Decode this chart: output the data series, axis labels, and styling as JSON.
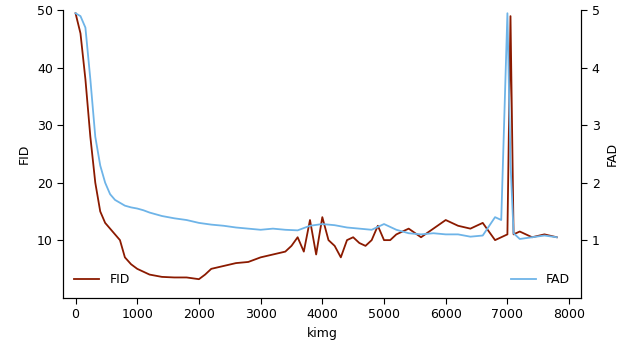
{
  "title": "",
  "xlabel": "kimg",
  "ylabel_left": "FID",
  "ylabel_right": "FAD",
  "fid_color": "#8B1A00",
  "fad_color": "#6EB4E8",
  "fid_label": "FID",
  "fad_label": "FAD",
  "xlim": [
    -200,
    8200
  ],
  "ylim_left": [
    0,
    50
  ],
  "ylim_right": [
    0,
    5
  ],
  "xticks": [
    0,
    1000,
    2000,
    3000,
    4000,
    5000,
    6000,
    7000,
    8000
  ],
  "yticks_left": [
    10,
    20,
    30,
    40,
    50
  ],
  "yticks_right": [
    1,
    2,
    3,
    4,
    5
  ],
  "fid_x": [
    0,
    80,
    160,
    240,
    320,
    400,
    480,
    560,
    640,
    720,
    800,
    900,
    1000,
    1100,
    1200,
    1400,
    1600,
    1800,
    2000,
    2100,
    2200,
    2400,
    2600,
    2800,
    3000,
    3200,
    3400,
    3500,
    3600,
    3700,
    3800,
    3900,
    4000,
    4100,
    4200,
    4300,
    4400,
    4500,
    4600,
    4700,
    4800,
    4900,
    5000,
    5100,
    5200,
    5400,
    5600,
    5800,
    6000,
    6200,
    6400,
    6600,
    6800,
    6900,
    7000,
    7050,
    7100,
    7200,
    7400,
    7600,
    7800
  ],
  "fid_y": [
    49.5,
    46,
    38,
    28,
    20,
    15,
    13,
    12,
    11,
    10,
    7,
    5.8,
    5.0,
    4.5,
    4.0,
    3.6,
    3.5,
    3.5,
    3.2,
    4.0,
    5.0,
    5.5,
    6.0,
    6.2,
    7.0,
    7.5,
    8.0,
    9.0,
    10.5,
    8.0,
    13.5,
    7.5,
    14.0,
    10.0,
    9.0,
    7.0,
    10.0,
    10.5,
    9.5,
    9.0,
    10.0,
    12.5,
    10.0,
    10.0,
    11.0,
    12.0,
    10.5,
    12.0,
    13.5,
    12.5,
    12.0,
    13.0,
    10.0,
    10.5,
    11.0,
    49.0,
    11.0,
    11.5,
    10.5,
    11.0,
    10.5
  ],
  "fad_x": [
    0,
    80,
    160,
    240,
    320,
    400,
    480,
    560,
    640,
    720,
    800,
    900,
    1000,
    1100,
    1200,
    1400,
    1600,
    1800,
    2000,
    2200,
    2400,
    2600,
    2800,
    3000,
    3200,
    3400,
    3600,
    3800,
    4000,
    4200,
    4400,
    4600,
    4800,
    5000,
    5200,
    5400,
    5600,
    5800,
    6000,
    6200,
    6400,
    6600,
    6800,
    6900,
    7000,
    7050,
    7100,
    7200,
    7400,
    7600,
    7800
  ],
  "fad_y": [
    4.95,
    4.9,
    4.7,
    3.8,
    2.8,
    2.3,
    2.0,
    1.8,
    1.7,
    1.65,
    1.6,
    1.57,
    1.55,
    1.52,
    1.48,
    1.42,
    1.38,
    1.35,
    1.3,
    1.27,
    1.25,
    1.22,
    1.2,
    1.18,
    1.2,
    1.18,
    1.17,
    1.25,
    1.28,
    1.26,
    1.22,
    1.2,
    1.18,
    1.28,
    1.18,
    1.12,
    1.1,
    1.12,
    1.1,
    1.1,
    1.06,
    1.08,
    1.4,
    1.35,
    4.95,
    2.35,
    1.12,
    1.02,
    1.05,
    1.08,
    1.05
  ],
  "background_color": "#ffffff",
  "linewidth": 1.3,
  "legend_fontsize": 9,
  "axis_fontsize": 9,
  "tick_fontsize": 9
}
